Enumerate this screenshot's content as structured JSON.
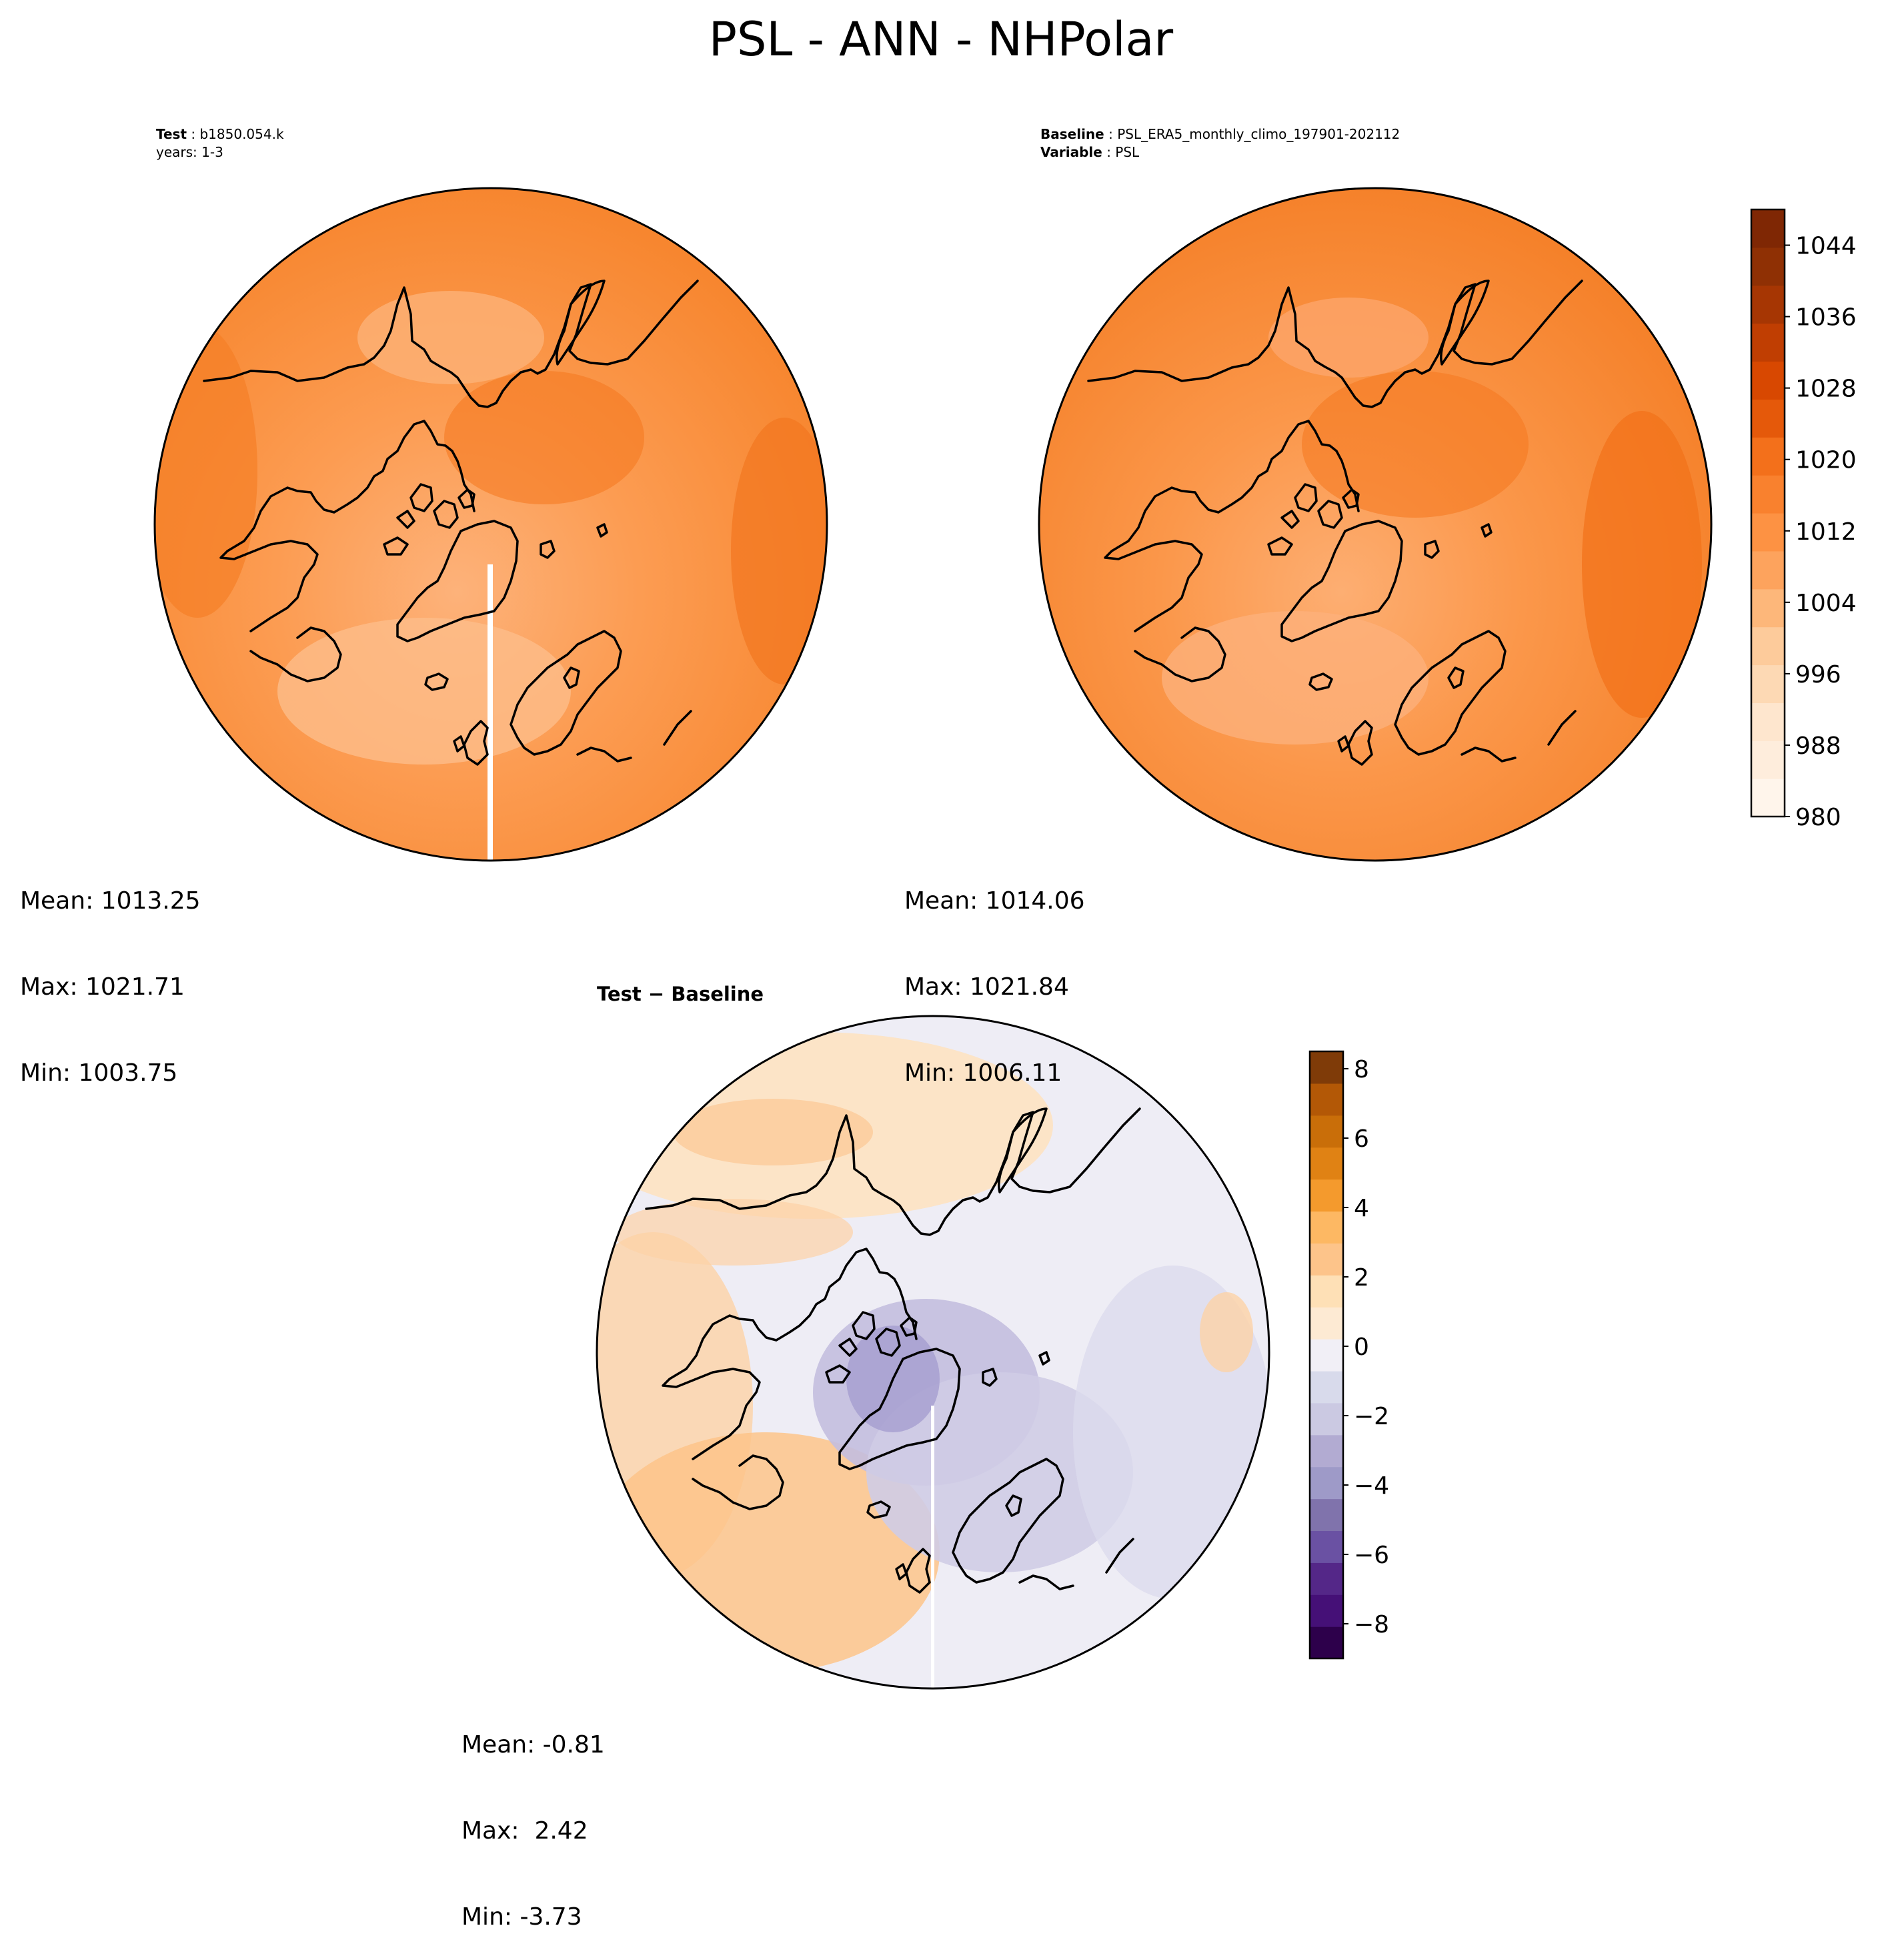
{
  "suptitle": "PSL - ANN - NHPolar",
  "test_panel": {
    "label_bold": "Test",
    "case_name": "b1850.054.k",
    "years": "years: 1-3",
    "stats": {
      "mean": "Mean: 1013.25",
      "max": "Max: 1021.71",
      "min": "Min: 1003.75"
    }
  },
  "baseline_panel": {
    "label_bold": "Baseline",
    "case_name": "PSL_ERA5_monthly_climo_197901-202112",
    "variable_bold": "Variable",
    "variable_name": "PSL",
    "stats": {
      "mean": "Mean: 1014.06",
      "max": "Max: 1021.84",
      "min": "Min: 1006.11"
    }
  },
  "diff_panel": {
    "title_left": "Test",
    "title_op": "−",
    "title_right": "Baseline",
    "stats": {
      "mean": "Mean: -0.81",
      "max": "Max:  2.42",
      "min": "Min: -3.73"
    }
  },
  "colors": {
    "field_test": "#f98f3f",
    "field_base": "#f98a39",
    "coast": "#000000",
    "diff_neutral": "#f0eff4",
    "diff_pos": "#fdc98e",
    "diff_neg": "#bdb7d9"
  },
  "colorbar_abs": {
    "ticks": [
      "980",
      "988",
      "996",
      "1004",
      "1012",
      "1020",
      "1028",
      "1036",
      "1044"
    ],
    "range": [
      980,
      1048
    ],
    "colors": [
      "#fff5eb",
      "#feeddc",
      "#fee6ce",
      "#fdd9b4",
      "#fdcb9b",
      "#fdb77a",
      "#fda35d",
      "#fd9243",
      "#f9812e",
      "#f3701b",
      "#e5590a",
      "#d84801",
      "#c03e02",
      "#a63603",
      "#8f3004",
      "#7f2704"
    ]
  },
  "colorbar_diff": {
    "ticks": [
      "−8",
      "−6",
      "−4",
      "−2",
      "0",
      "2",
      "4",
      "6",
      "8"
    ],
    "range": [
      -9,
      8.5
    ],
    "colors": [
      "#2d004b",
      "#451077",
      "#542788",
      "#6a51a3",
      "#8073ac",
      "#9e9ac8",
      "#b2abd2",
      "#cbc9e2",
      "#d8daeb",
      "#f1eff6",
      "#fdead3",
      "#fee0b6",
      "#fdc48a",
      "#fdb863",
      "#f49a2d",
      "#e08214",
      "#c96e09",
      "#b35806",
      "#7f3b08"
    ]
  }
}
